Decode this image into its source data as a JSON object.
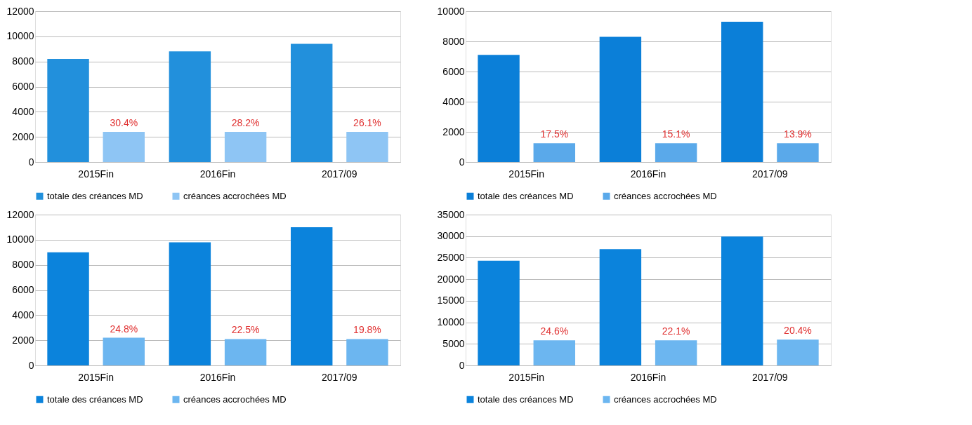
{
  "chart_data": [
    {
      "type": "bar",
      "categories": [
        "2015Fin",
        "2016Fin",
        "2017/09"
      ],
      "ylim": [
        0,
        12000
      ],
      "yticks": [
        0,
        2000,
        4000,
        6000,
        8000,
        10000,
        12000
      ],
      "grid": "y",
      "legend": "bottom",
      "series": [
        {
          "name": "totale des créances MD",
          "color": "#2290dc",
          "values": [
            8200,
            8800,
            9400
          ]
        },
        {
          "name": "créances accrochées MD",
          "color": "#8ec5f4",
          "values": [
            2400,
            2400,
            2400
          ]
        }
      ],
      "annotations": [
        "30.4%",
        "28.2%",
        "26.1%"
      ]
    },
    {
      "type": "bar",
      "categories": [
        "2015Fin",
        "2016Fin",
        "2017/09"
      ],
      "ylim": [
        0,
        10000
      ],
      "yticks": [
        0,
        2000,
        4000,
        6000,
        8000,
        10000
      ],
      "grid": "y",
      "legend": "bottom",
      "series": [
        {
          "name": "totale des créances MD",
          "color": "#0b7fd8",
          "values": [
            7100,
            8300,
            9300
          ]
        },
        {
          "name": "créances accrochées MD",
          "color": "#5aa9ea",
          "values": [
            1250,
            1250,
            1250
          ]
        }
      ],
      "annotations": [
        "17.5%",
        "15.1%",
        "13.9%"
      ]
    },
    {
      "type": "bar",
      "categories": [
        "2015Fin",
        "2016Fin",
        "2017/09"
      ],
      "ylim": [
        0,
        12000
      ],
      "yticks": [
        0,
        2000,
        4000,
        6000,
        8000,
        10000,
        12000
      ],
      "grid": "y",
      "legend": "bottom",
      "series": [
        {
          "name": "totale des créances MD",
          "color": "#0b83dc",
          "values": [
            9000,
            9800,
            11000
          ]
        },
        {
          "name": "créances accrochées MD",
          "color": "#6cb6f0",
          "values": [
            2200,
            2100,
            2100
          ]
        }
      ],
      "annotations": [
        "24.8%",
        "22.5%",
        "19.8%"
      ]
    },
    {
      "type": "bar",
      "categories": [
        "2015Fin",
        "2016Fin",
        "2017/09"
      ],
      "ylim": [
        0,
        35000
      ],
      "yticks": [
        0,
        5000,
        10000,
        15000,
        20000,
        25000,
        30000,
        35000
      ],
      "grid": "y",
      "legend": "bottom",
      "series": [
        {
          "name": "totale des créances MD",
          "color": "#0b83dc",
          "values": [
            24300,
            27000,
            29900
          ]
        },
        {
          "name": "créances accrochées MD",
          "color": "#6cb6f0",
          "values": [
            5800,
            5800,
            6000
          ]
        }
      ],
      "annotations": [
        "24.6%",
        "22.1%",
        "20.4%"
      ]
    }
  ]
}
